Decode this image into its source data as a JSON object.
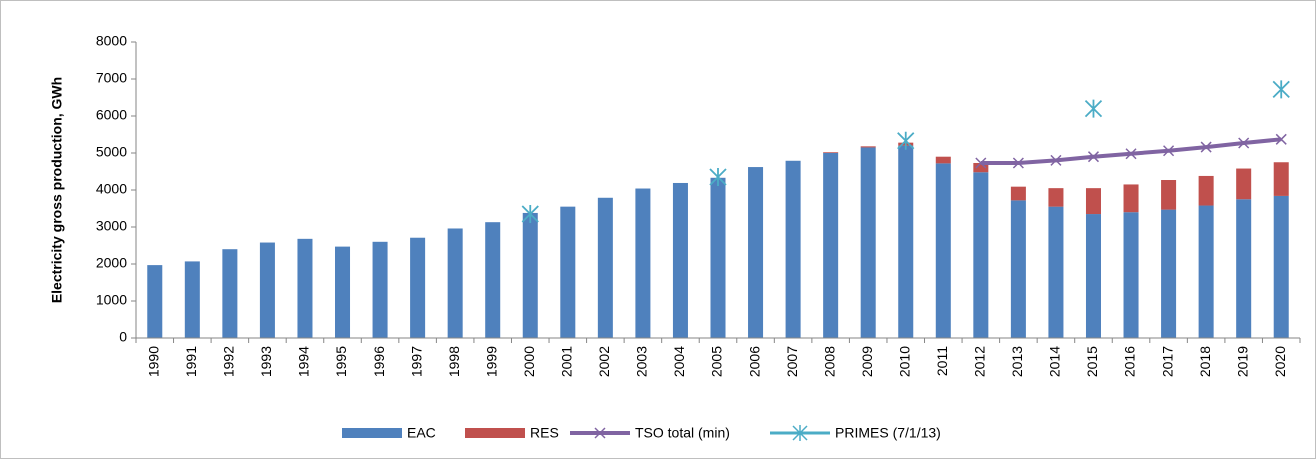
{
  "chart_data": {
    "type": "bar",
    "y_label": "Electricity gross production, GWh",
    "categories": [
      "1990",
      "1991",
      "1992",
      "1993",
      "1994",
      "1995",
      "1996",
      "1997",
      "1998",
      "1999",
      "2000",
      "2001",
      "2002",
      "2003",
      "2004",
      "2005",
      "2006",
      "2007",
      "2008",
      "2009",
      "2010",
      "2011",
      "2012",
      "2013",
      "2014",
      "2015",
      "2016",
      "2017",
      "2018",
      "2019",
      "2020"
    ],
    "series": [
      {
        "name": "EAC",
        "color": "#4f81bd",
        "kind": "bar",
        "values": [
          1970,
          2070,
          2400,
          2580,
          2680,
          2470,
          2600,
          2710,
          2960,
          3130,
          3380,
          3550,
          3790,
          4040,
          4190,
          4330,
          4620,
          4790,
          5000,
          5150,
          5200,
          4720,
          4480,
          3720,
          3550,
          3350,
          3400,
          3470,
          3580,
          3750,
          3840
        ]
      },
      {
        "name": "RES",
        "color": "#c0504d",
        "kind": "bar",
        "values": [
          0,
          0,
          0,
          0,
          0,
          0,
          0,
          0,
          0,
          0,
          0,
          0,
          0,
          0,
          0,
          0,
          0,
          0,
          20,
          30,
          80,
          180,
          250,
          370,
          500,
          700,
          750,
          800,
          800,
          830,
          910
        ]
      },
      {
        "name": "TSO total (min)",
        "color": "#8064a2",
        "kind": "line",
        "values": [
          null,
          null,
          null,
          null,
          null,
          null,
          null,
          null,
          null,
          null,
          null,
          null,
          null,
          null,
          null,
          null,
          null,
          null,
          null,
          null,
          null,
          null,
          4730,
          4730,
          4800,
          4900,
          4980,
          5060,
          5160,
          5270,
          5370
        ]
      },
      {
        "name": "PRIMES (7/1/13)",
        "color": "#4bacc6",
        "kind": "marker",
        "values": [
          null,
          null,
          null,
          null,
          null,
          null,
          null,
          null,
          null,
          null,
          3350,
          null,
          null,
          null,
          null,
          4350,
          null,
          null,
          null,
          null,
          5330,
          null,
          null,
          null,
          null,
          6200,
          null,
          null,
          null,
          null,
          6720
        ]
      }
    ],
    "ylim": [
      0,
      8000
    ],
    "yticks": [
      0,
      1000,
      2000,
      3000,
      4000,
      5000,
      6000,
      7000,
      8000
    ],
    "grid": false,
    "legend": "bottom"
  }
}
